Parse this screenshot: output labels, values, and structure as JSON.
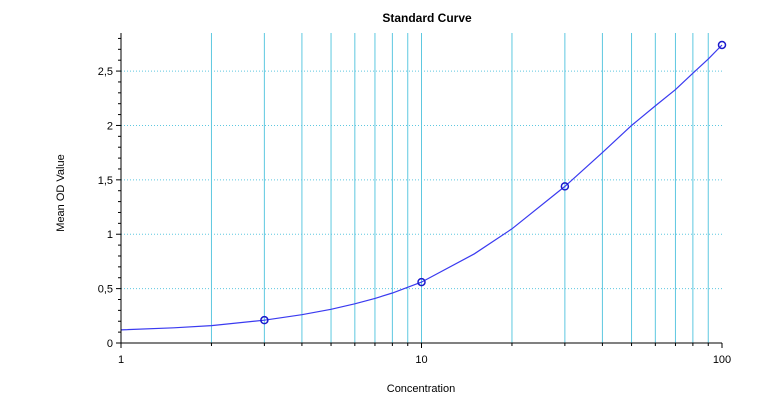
{
  "chart_data": {
    "type": "scatter",
    "title": "Standard Curve",
    "xlabel": "Concentration",
    "ylabel": "Mean OD Value",
    "x_scale": "log",
    "xlim": [
      1,
      100
    ],
    "ylim": [
      0,
      2.85
    ],
    "x_ticks": [
      {
        "value": 1,
        "label": "1"
      },
      {
        "value": 10,
        "label": "10"
      },
      {
        "value": 100,
        "label": "100"
      }
    ],
    "y_ticks": [
      {
        "value": 0,
        "label": "0"
      },
      {
        "value": 0.5,
        "label": "0,5"
      },
      {
        "value": 1,
        "label": "1"
      },
      {
        "value": 1.5,
        "label": "1,5"
      },
      {
        "value": 2,
        "label": "2"
      },
      {
        "value": 2.5,
        "label": "2,5"
      }
    ],
    "grid": true,
    "series": [
      {
        "points": [
          {
            "x": 3,
            "y": 0.21
          },
          {
            "x": 10,
            "y": 0.56
          },
          {
            "x": 30,
            "y": 1.44
          },
          {
            "x": 100,
            "y": 2.74
          }
        ],
        "curve": [
          {
            "x": 1,
            "y": 0.12
          },
          {
            "x": 1.5,
            "y": 0.14
          },
          {
            "x": 2,
            "y": 0.16
          },
          {
            "x": 3,
            "y": 0.21
          },
          {
            "x": 4,
            "y": 0.26
          },
          {
            "x": 5,
            "y": 0.31
          },
          {
            "x": 6,
            "y": 0.36
          },
          {
            "x": 7,
            "y": 0.41
          },
          {
            "x": 8,
            "y": 0.46
          },
          {
            "x": 10,
            "y": 0.56
          },
          {
            "x": 15,
            "y": 0.82
          },
          {
            "x": 20,
            "y": 1.05
          },
          {
            "x": 30,
            "y": 1.44
          },
          {
            "x": 40,
            "y": 1.75
          },
          {
            "x": 50,
            "y": 2.0
          },
          {
            "x": 60,
            "y": 2.18
          },
          {
            "x": 70,
            "y": 2.33
          },
          {
            "x": 80,
            "y": 2.48
          },
          {
            "x": 90,
            "y": 2.61
          },
          {
            "x": 100,
            "y": 2.74
          }
        ]
      }
    ]
  },
  "colors": {
    "curve": "#3a3af0",
    "marker": "#1a1acc",
    "grid": "#5ec8e0",
    "axis": "#000000"
  }
}
